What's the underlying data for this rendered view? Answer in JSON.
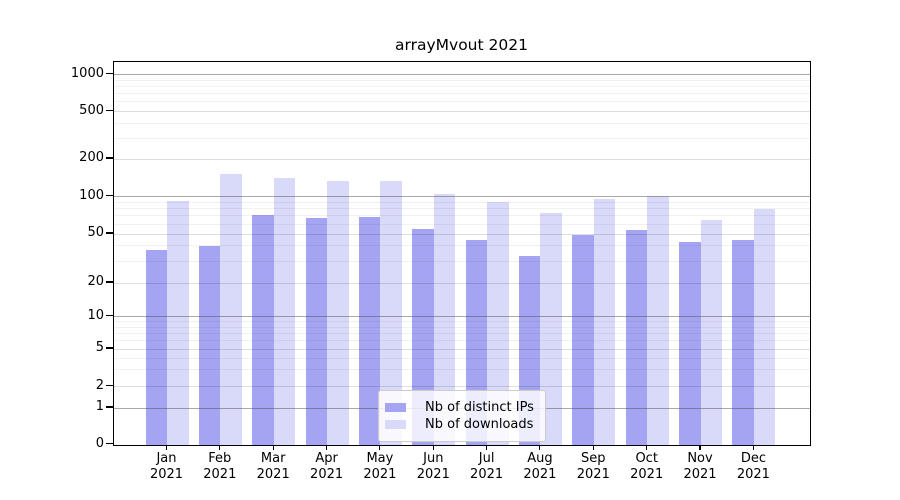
{
  "chart_data": {
    "type": "bar",
    "title": "arrayMvout 2021",
    "categories": [
      "Jan 2021",
      "Feb 2021",
      "Mar 2021",
      "Apr 2021",
      "May 2021",
      "Jun 2021",
      "Jul 2021",
      "Aug 2021",
      "Sep 2021",
      "Oct 2021",
      "Nov 2021",
      "Dec 2021"
    ],
    "series": [
      {
        "name": "Nb of distinct IPs",
        "color": "#a4a4f2",
        "values": [
          37,
          40,
          71,
          67,
          69,
          55,
          45,
          33,
          49,
          54,
          43,
          45
        ]
      },
      {
        "name": "Nb of downloads",
        "color": "#d9d9f9",
        "values": [
          92,
          152,
          142,
          134,
          134,
          106,
          90,
          74,
          96,
          101,
          65,
          80
        ]
      }
    ],
    "xlabel": "",
    "ylabel": "",
    "yscale": "symlog",
    "y_tick_labels": [
      "0",
      "1",
      "2",
      "5",
      "10",
      "20",
      "50",
      "100",
      "200",
      "500",
      "1000"
    ],
    "y_tick_values": [
      0,
      1,
      2,
      5,
      10,
      20,
      50,
      100,
      200,
      500,
      1000
    ],
    "ylim": [
      0,
      1260
    ],
    "grid": true,
    "legend": {
      "position": "lower-center",
      "entries": [
        "Nb of distinct IPs",
        "Nb of downloads"
      ]
    }
  }
}
